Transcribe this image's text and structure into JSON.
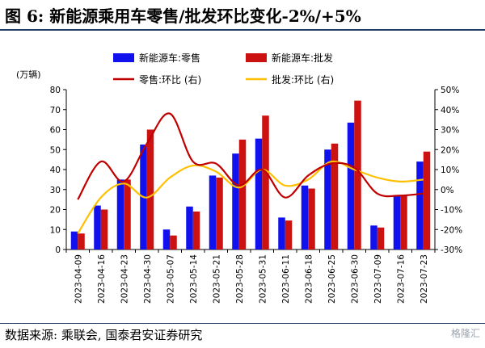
{
  "header": {
    "title": "图 6:  新能源乘用车零售/批发环比变化-2%/+5%"
  },
  "footer": {
    "source": "数据来源:  乘联会,  国泰君安证券研究",
    "watermark": "格隆汇"
  },
  "colors": {
    "retail_bar": "#1111ee",
    "wholesale_bar": "#cc1111",
    "retail_line": "#c00000",
    "wholesale_line": "#ffc000",
    "rule": "#1f3864"
  },
  "chart_data": {
    "type": "bar",
    "left_axis_unit": "(万辆)",
    "categories": [
      "2023-04-09",
      "2023-04-16",
      "2023-04-23",
      "2023-04-30",
      "2023-05-07",
      "2023-05-14",
      "2023-05-21",
      "2023-05-28",
      "2023-05-31",
      "2023-06-11",
      "2023-06-18",
      "2023-06-25",
      "2023-06-30",
      "2023-07-09",
      "2023-07-16",
      "2023-07-23"
    ],
    "ylim_left": [
      0,
      80
    ],
    "yticks_left": [
      "0",
      "10",
      "20",
      "30",
      "40",
      "50",
      "60",
      "70",
      "80"
    ],
    "ylim_right": [
      -30,
      50
    ],
    "yticks_right": [
      "-30%",
      "-20%",
      "-10%",
      "0%",
      "10%",
      "20%",
      "30%",
      "40%",
      "50%"
    ],
    "series": [
      {
        "name": "新能源车:零售",
        "type": "bar",
        "axis": "left",
        "values": [
          9,
          22,
          35,
          52.5,
          10,
          21.5,
          37,
          48,
          55.5,
          16,
          32,
          50,
          63.5,
          12,
          27,
          44
        ]
      },
      {
        "name": "新能源车:批发",
        "type": "bar",
        "axis": "left",
        "values": [
          8,
          20,
          35,
          60,
          7,
          19,
          36,
          55,
          67,
          14.5,
          30.5,
          53,
          74.5,
          11,
          27,
          49
        ]
      },
      {
        "name": "零售:环比 (右)",
        "type": "line",
        "axis": "right",
        "values": [
          -5,
          14,
          4,
          23,
          38,
          14,
          13,
          2,
          10,
          -4,
          7,
          13,
          11,
          -2,
          -3,
          -2
        ]
      },
      {
        "name": "批发:环比 (右)",
        "type": "line",
        "axis": "right",
        "values": [
          -22,
          -4,
          3,
          -4,
          6,
          12,
          9,
          1,
          10,
          2,
          5,
          14,
          10,
          6,
          4,
          5
        ]
      }
    ],
    "legend_position": "top",
    "grid": false
  }
}
